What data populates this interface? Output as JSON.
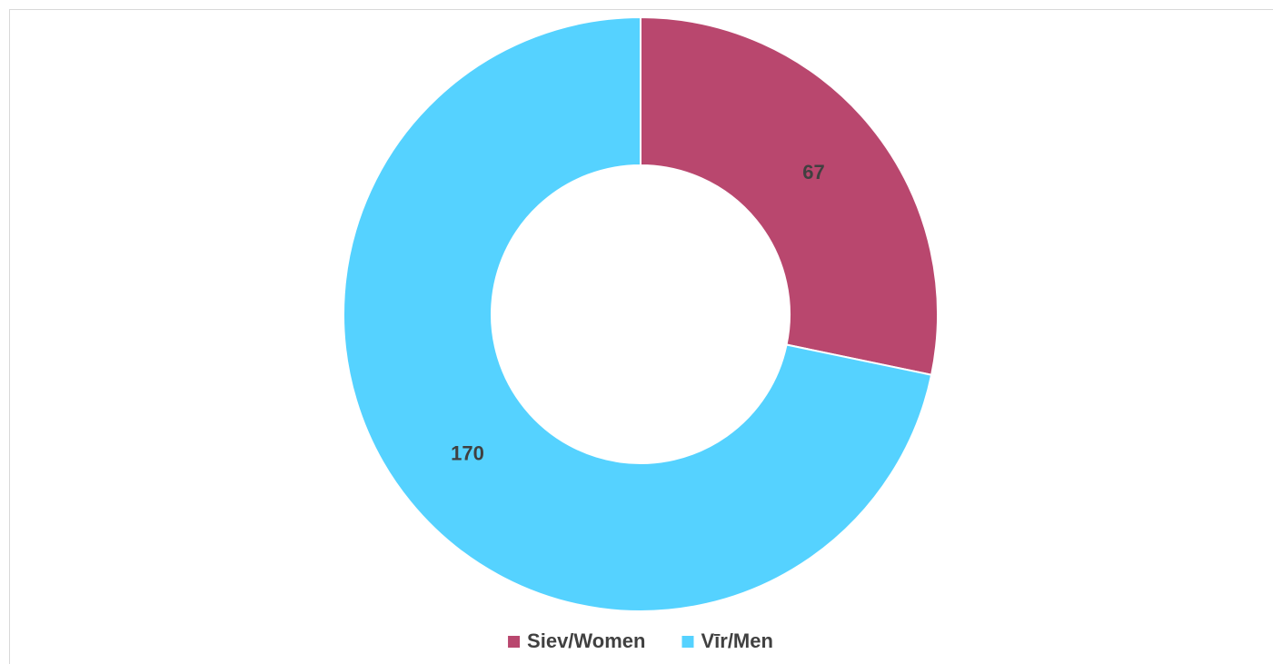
{
  "chart_data": {
    "type": "donut",
    "categories": [
      "Siev/Women",
      "Vīr/Men"
    ],
    "values": [
      67,
      170
    ],
    "colors": [
      "#b9476e",
      "#55d2ff"
    ],
    "legend": "bottom"
  }
}
